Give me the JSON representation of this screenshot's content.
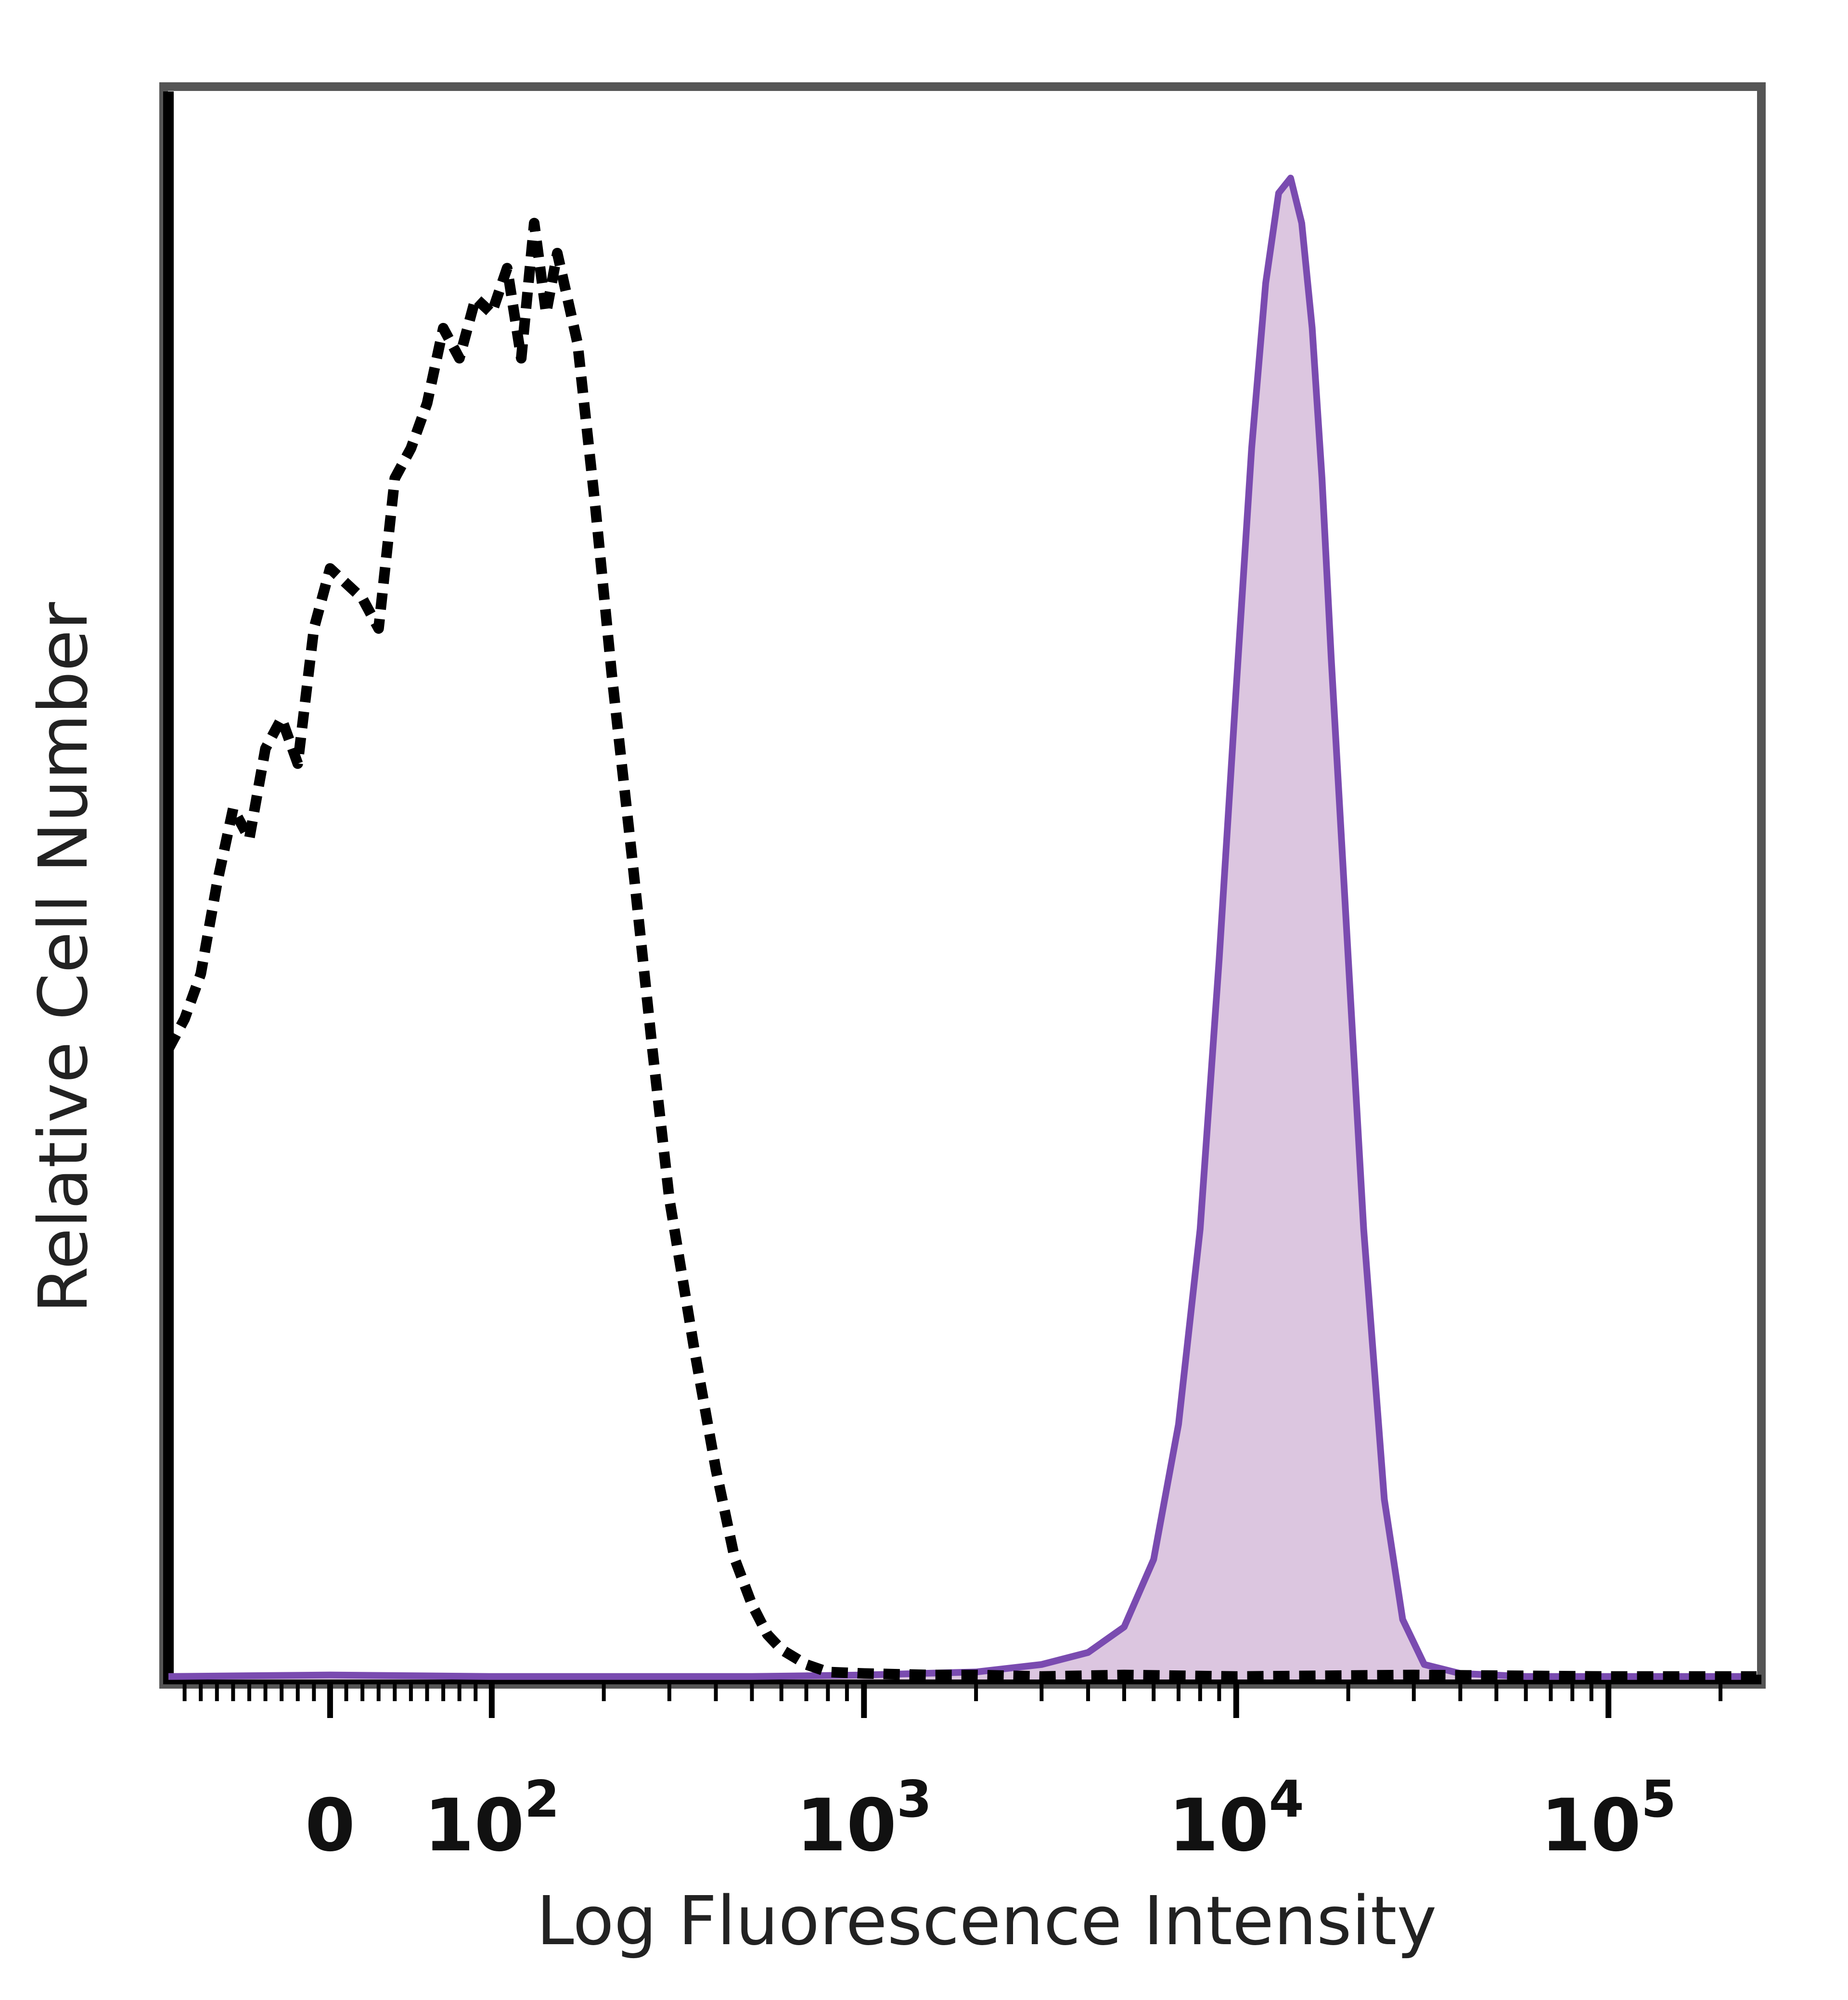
{
  "chart_data": {
    "type": "area",
    "xlabel": "Log Fluorescence Intensity",
    "ylabel": "Relative Cell Number",
    "x_scale": "logicle",
    "xlim": [
      -100,
      250000
    ],
    "ylim": [
      0,
      1
    ],
    "tick_labels": [
      {
        "value": 0,
        "base": "0",
        "exp": ""
      },
      {
        "value": 100,
        "base": "10",
        "exp": "2"
      },
      {
        "value": 1000,
        "base": "10",
        "exp": "3"
      },
      {
        "value": 10000,
        "base": "10",
        "exp": "4"
      },
      {
        "value": 100000,
        "base": "10",
        "exp": "5"
      }
    ],
    "grid": false,
    "legend": "none",
    "series": [
      {
        "style": "dashed",
        "color": "#000000",
        "fill": "none",
        "x": [
          -100,
          -90,
          -80,
          -70,
          -60,
          -50,
          -40,
          -30,
          -20,
          -10,
          0,
          10,
          20,
          30,
          40,
          50,
          60,
          70,
          80,
          90,
          100,
          110,
          120,
          130,
          140,
          150,
          170,
          190,
          210,
          240,
          270,
          300,
          350,
          400,
          450,
          500,
          550,
          600,
          700,
          800,
          1000,
          1500,
          2000,
          3000,
          5000,
          10000,
          30000,
          100000,
          250000
        ],
        "y": [
          0.42,
          0.44,
          0.47,
          0.53,
          0.58,
          0.56,
          0.62,
          0.64,
          0.61,
          0.7,
          0.74,
          0.73,
          0.72,
          0.7,
          0.8,
          0.82,
          0.85,
          0.9,
          0.88,
          0.92,
          0.91,
          0.94,
          0.88,
          0.97,
          0.91,
          0.95,
          0.89,
          0.78,
          0.67,
          0.54,
          0.42,
          0.32,
          0.22,
          0.14,
          0.08,
          0.05,
          0.03,
          0.02,
          0.01,
          0.005,
          0.004,
          0.003,
          0.003,
          0.002,
          0.003,
          0.002,
          0.003,
          0.002,
          0.002
        ]
      },
      {
        "style": "solid",
        "color": "#7a4bb0",
        "fill": "#dcc6e0",
        "x": [
          -100,
          0,
          100,
          500,
          1000,
          2000,
          3000,
          4000,
          5000,
          6000,
          7000,
          8000,
          9000,
          10000,
          11000,
          12000,
          13000,
          14000,
          15000,
          16000,
          17000,
          18000,
          20000,
          22000,
          25000,
          28000,
          32000,
          40000,
          60000,
          100000,
          250000
        ],
        "y": [
          0.002,
          0.003,
          0.002,
          0.002,
          0.003,
          0.005,
          0.01,
          0.018,
          0.035,
          0.08,
          0.17,
          0.3,
          0.48,
          0.66,
          0.82,
          0.93,
          0.99,
          1.0,
          0.97,
          0.9,
          0.8,
          0.68,
          0.48,
          0.3,
          0.12,
          0.04,
          0.01,
          0.004,
          0.002,
          0.002,
          0.002
        ]
      }
    ]
  }
}
